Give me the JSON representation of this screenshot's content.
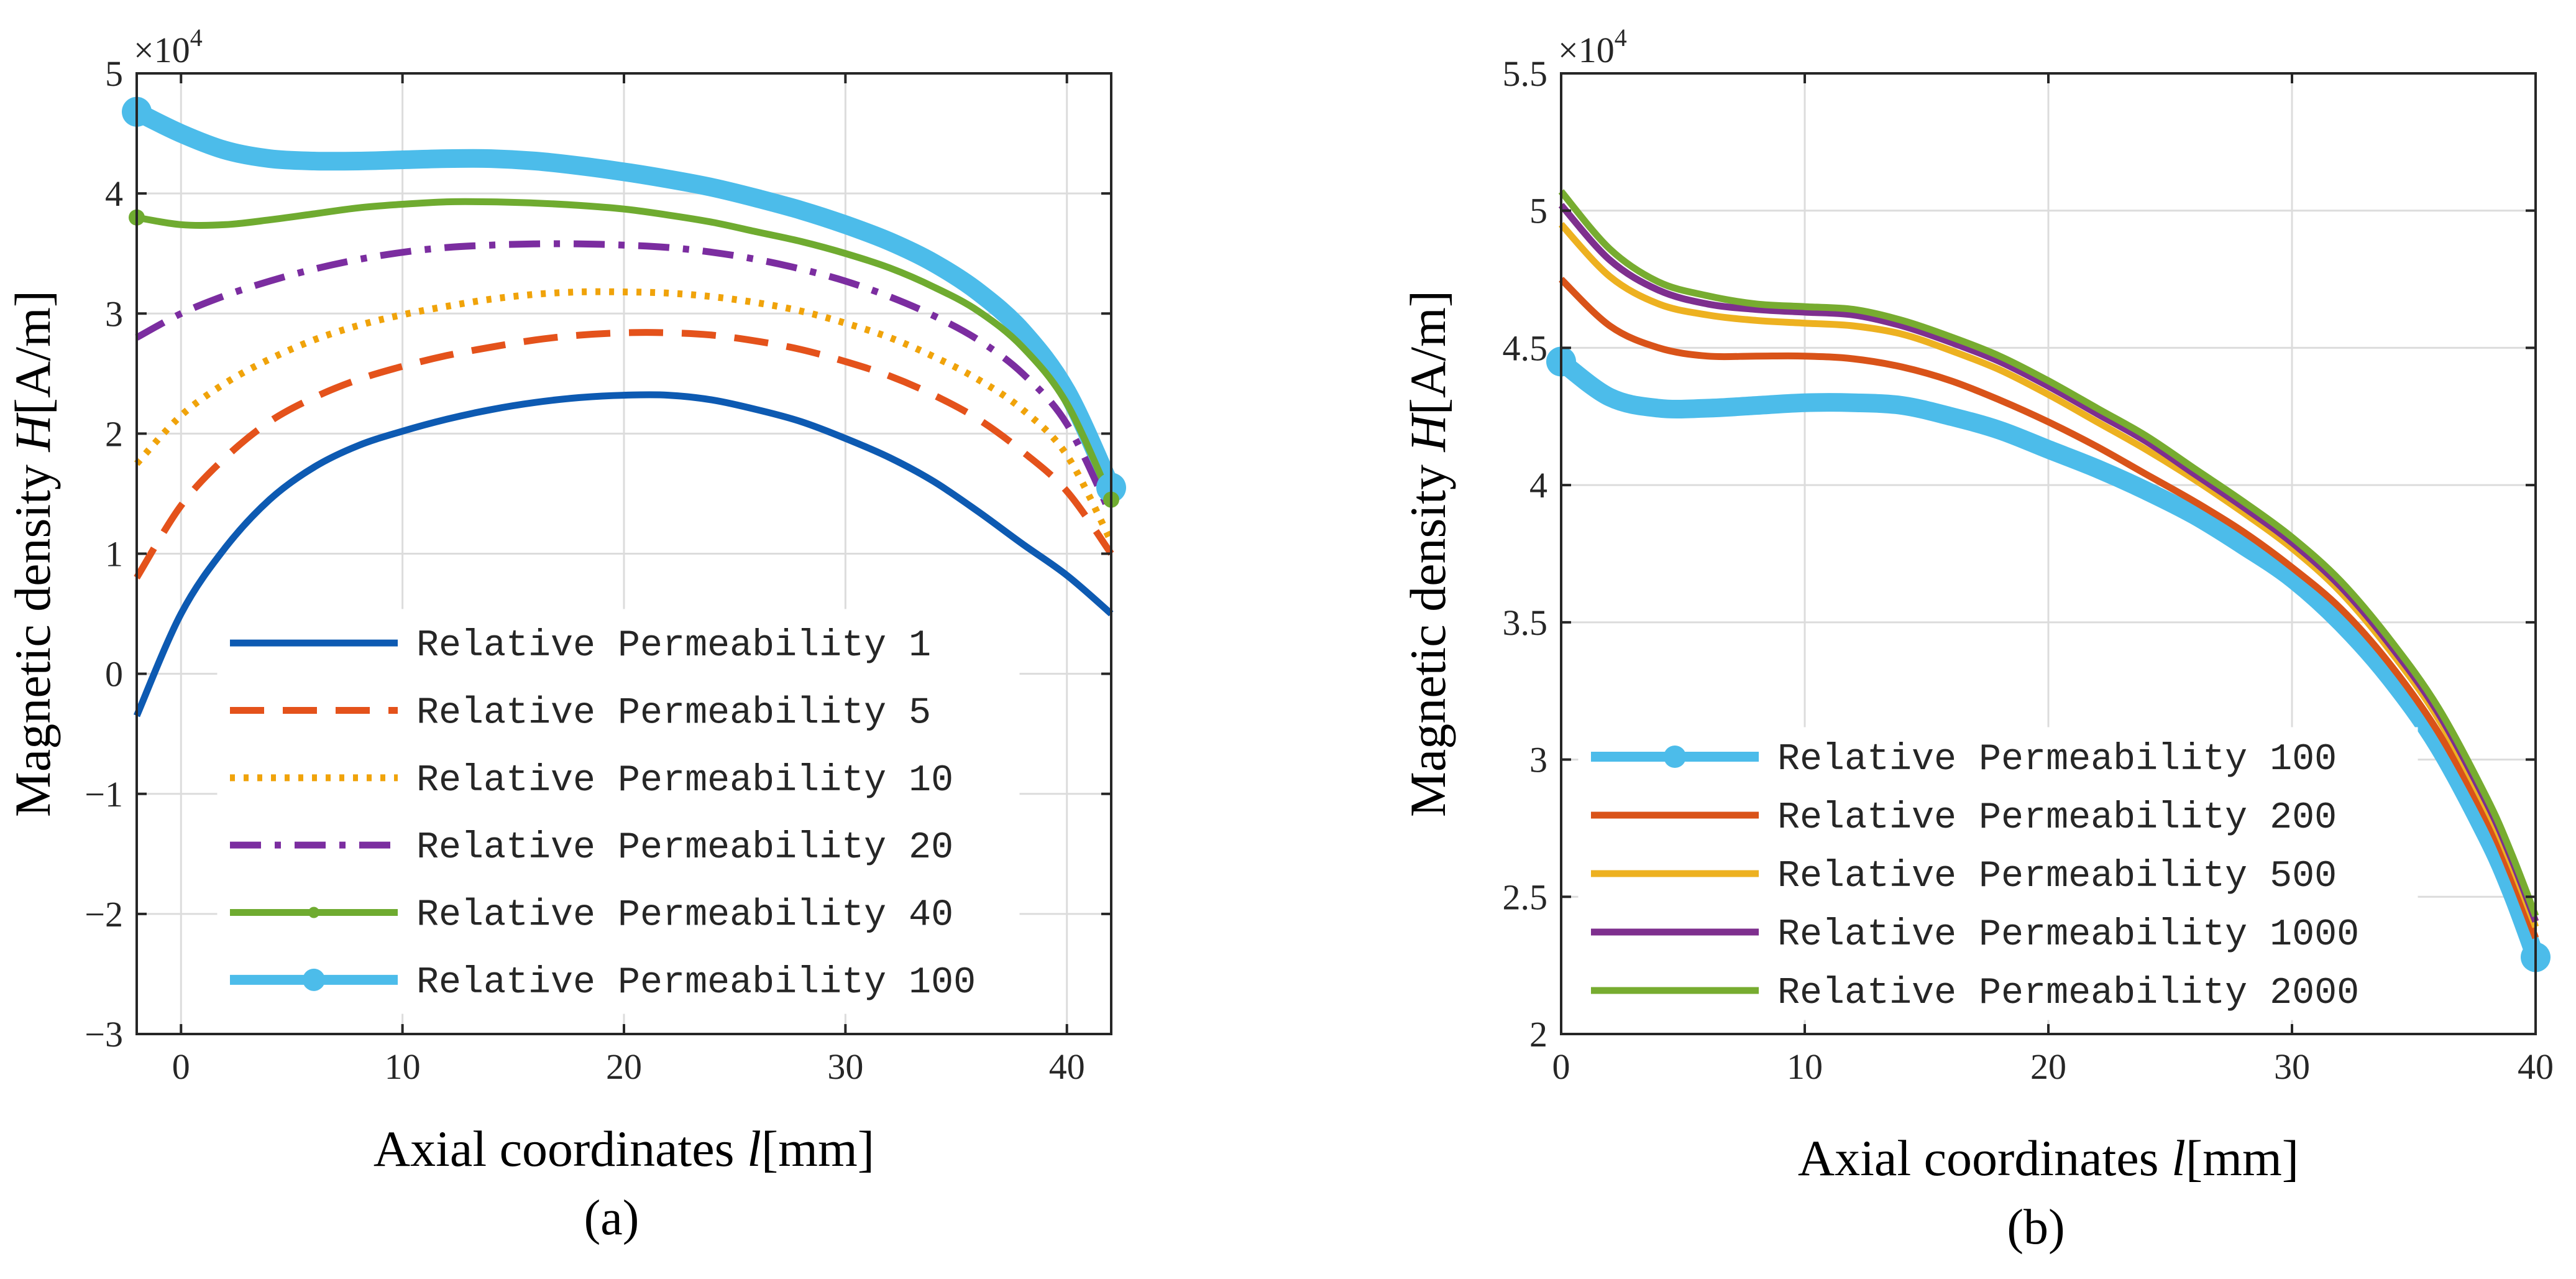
{
  "chart_data": [
    {
      "type": "line",
      "caption": "(a)",
      "xlabel": "Axial coordinates l[mm]",
      "xlabel_parts": [
        "Axial coordinates ",
        "l",
        "[mm]"
      ],
      "ylabel": "Magnetic density H[A/m]",
      "ylabel_parts": [
        "Magnetic density ",
        "H",
        "[A/m]"
      ],
      "multiplier_base": "×10",
      "multiplier_exp": "4",
      "xlim": [
        -2,
        42
      ],
      "ylim": [
        -3,
        5
      ],
      "xticks": [
        0,
        10,
        20,
        30,
        40
      ],
      "xtick_labels": [
        "0",
        "10",
        "20",
        "30",
        "40"
      ],
      "yticks": [
        -3,
        -2,
        -1,
        0,
        1,
        2,
        3,
        4,
        5
      ],
      "ytick_labels": [
        "−3",
        "−2",
        "−1",
        "0",
        "1",
        "2",
        "3",
        "4",
        "5"
      ],
      "grid": true,
      "legend_position": "lower-center",
      "series": [
        {
          "name": "Relative Permeability 1",
          "color": "#0d5ab2",
          "style": "solid",
          "x": [
            -2,
            0,
            2,
            4,
            6,
            8,
            10,
            12,
            14,
            16,
            18,
            20,
            22,
            24,
            26,
            28,
            30,
            32,
            34,
            36,
            38,
            40,
            42
          ],
          "y": [
            -0.35,
            0.5,
            1.05,
            1.45,
            1.72,
            1.9,
            2.02,
            2.12,
            2.2,
            2.26,
            2.3,
            2.32,
            2.32,
            2.28,
            2.2,
            2.1,
            1.96,
            1.8,
            1.6,
            1.35,
            1.08,
            0.82,
            0.5
          ]
        },
        {
          "name": "Relative Permeability 5",
          "color": "#e4521b",
          "style": "dash",
          "x": [
            -2,
            0,
            2,
            4,
            6,
            8,
            10,
            12,
            14,
            16,
            18,
            20,
            22,
            24,
            26,
            28,
            30,
            32,
            34,
            36,
            38,
            40,
            42
          ],
          "y": [
            0.8,
            1.4,
            1.8,
            2.1,
            2.3,
            2.45,
            2.56,
            2.65,
            2.72,
            2.78,
            2.82,
            2.84,
            2.84,
            2.82,
            2.77,
            2.7,
            2.6,
            2.48,
            2.32,
            2.12,
            1.85,
            1.52,
            1.0
          ]
        },
        {
          "name": "Relative Permeability 10",
          "color": "#f0a30a",
          "style": "dot",
          "x": [
            -2,
            0,
            2,
            4,
            6,
            8,
            10,
            12,
            14,
            16,
            18,
            20,
            22,
            24,
            26,
            28,
            30,
            32,
            34,
            36,
            38,
            40,
            42
          ],
          "y": [
            1.75,
            2.15,
            2.42,
            2.62,
            2.78,
            2.9,
            2.99,
            3.06,
            3.12,
            3.16,
            3.18,
            3.18,
            3.17,
            3.14,
            3.09,
            3.02,
            2.92,
            2.8,
            2.64,
            2.45,
            2.2,
            1.82,
            1.1
          ]
        },
        {
          "name": "Relative Permeability 20",
          "color": "#7b2da0",
          "style": "dashdot",
          "x": [
            -2,
            0,
            2,
            4,
            6,
            8,
            10,
            12,
            14,
            16,
            18,
            20,
            22,
            24,
            26,
            28,
            30,
            32,
            34,
            36,
            38,
            40,
            42
          ],
          "y": [
            2.8,
            3.0,
            3.15,
            3.27,
            3.37,
            3.45,
            3.51,
            3.55,
            3.57,
            3.58,
            3.58,
            3.57,
            3.55,
            3.51,
            3.45,
            3.37,
            3.27,
            3.14,
            2.98,
            2.78,
            2.5,
            2.08,
            1.32
          ]
        },
        {
          "name": "Relative Permeability 40",
          "color": "#6fab30",
          "style": "solid-marker",
          "x": [
            -2,
            0,
            2,
            4,
            6,
            8,
            10,
            12,
            14,
            16,
            18,
            20,
            22,
            24,
            26,
            28,
            30,
            32,
            34,
            36,
            38,
            40,
            42
          ],
          "y": [
            3.8,
            3.74,
            3.74,
            3.78,
            3.83,
            3.88,
            3.91,
            3.93,
            3.93,
            3.92,
            3.9,
            3.87,
            3.82,
            3.76,
            3.68,
            3.6,
            3.5,
            3.38,
            3.22,
            3.02,
            2.72,
            2.25,
            1.45
          ]
        },
        {
          "name": "Relative Permeability 100",
          "color": "#4cbcea",
          "style": "thick-marker",
          "x": [
            -2,
            0,
            2,
            4,
            6,
            8,
            10,
            12,
            14,
            16,
            18,
            20,
            22,
            24,
            26,
            28,
            30,
            32,
            34,
            36,
            38,
            40,
            42
          ],
          "y": [
            4.68,
            4.5,
            4.36,
            4.29,
            4.27,
            4.27,
            4.28,
            4.29,
            4.29,
            4.27,
            4.23,
            4.18,
            4.12,
            4.05,
            3.96,
            3.86,
            3.74,
            3.6,
            3.42,
            3.18,
            2.85,
            2.35,
            1.55
          ]
        }
      ]
    },
    {
      "type": "line",
      "caption": "(b)",
      "xlabel": "Axial coordinates l[mm]",
      "xlabel_parts": [
        "Axial coordinates ",
        "l",
        "[mm]"
      ],
      "ylabel": "Magnetic density H[A/m]",
      "ylabel_parts": [
        "Magnetic density ",
        "H",
        "[A/m]"
      ],
      "multiplier_base": "×10",
      "multiplier_exp": "4",
      "xlim": [
        0,
        40
      ],
      "ylim": [
        2,
        5.5
      ],
      "xticks": [
        0,
        10,
        20,
        30,
        40
      ],
      "xtick_labels": [
        "0",
        "10",
        "20",
        "30",
        "40"
      ],
      "yticks": [
        2,
        2.5,
        3,
        3.5,
        4,
        4.5,
        5,
        5.5
      ],
      "ytick_labels": [
        "2",
        "2.5",
        "3",
        "3.5",
        "4",
        "4.5",
        "5",
        "5.5"
      ],
      "grid": true,
      "legend_position": "lower-left",
      "series": [
        {
          "name": "Relative Permeability 100",
          "color": "#4cbcea",
          "style": "thick-marker",
          "x": [
            0,
            2,
            4,
            6,
            8,
            10,
            12,
            14,
            16,
            18,
            20,
            22,
            24,
            26,
            28,
            30,
            32,
            34,
            36,
            38,
            39,
            40
          ],
          "y": [
            4.45,
            4.32,
            4.28,
            4.28,
            4.29,
            4.3,
            4.3,
            4.29,
            4.25,
            4.2,
            4.13,
            4.06,
            3.98,
            3.89,
            3.78,
            3.66,
            3.5,
            3.3,
            3.05,
            2.72,
            2.52,
            2.28
          ]
        },
        {
          "name": "Relative Permeability 200",
          "color": "#d95319",
          "style": "solid",
          "x": [
            0,
            2,
            4,
            6,
            8,
            10,
            12,
            14,
            16,
            18,
            20,
            22,
            24,
            26,
            28,
            30,
            32,
            34,
            36,
            38,
            39,
            40
          ],
          "y": [
            4.75,
            4.58,
            4.5,
            4.47,
            4.47,
            4.47,
            4.46,
            4.43,
            4.38,
            4.31,
            4.23,
            4.14,
            4.04,
            3.94,
            3.83,
            3.7,
            3.55,
            3.35,
            3.1,
            2.78,
            2.58,
            2.35
          ]
        },
        {
          "name": "Relative Permeability 500",
          "color": "#edb120",
          "style": "solid",
          "x": [
            0,
            2,
            4,
            6,
            8,
            10,
            12,
            14,
            16,
            18,
            20,
            22,
            24,
            26,
            28,
            30,
            32,
            34,
            36,
            38,
            39,
            40
          ],
          "y": [
            4.95,
            4.76,
            4.66,
            4.62,
            4.6,
            4.59,
            4.58,
            4.55,
            4.49,
            4.42,
            4.33,
            4.23,
            4.13,
            4.02,
            3.9,
            3.77,
            3.61,
            3.4,
            3.15,
            2.82,
            2.62,
            2.39
          ]
        },
        {
          "name": "Relative Permeability 1000",
          "color": "#7e2f8e",
          "style": "solid",
          "x": [
            0,
            2,
            4,
            6,
            8,
            10,
            12,
            14,
            16,
            18,
            20,
            22,
            24,
            26,
            28,
            30,
            32,
            34,
            36,
            38,
            39,
            40
          ],
          "y": [
            5.02,
            4.82,
            4.71,
            4.66,
            4.64,
            4.63,
            4.62,
            4.58,
            4.52,
            4.45,
            4.36,
            4.26,
            4.16,
            4.04,
            3.92,
            3.79,
            3.63,
            3.42,
            3.17,
            2.84,
            2.64,
            2.41
          ]
        },
        {
          "name": "Relative Permeability 2000",
          "color": "#77ac30",
          "style": "solid",
          "x": [
            0,
            2,
            4,
            6,
            8,
            10,
            12,
            14,
            16,
            18,
            20,
            22,
            24,
            26,
            28,
            30,
            32,
            34,
            36,
            38,
            39,
            40
          ],
          "y": [
            5.07,
            4.86,
            4.74,
            4.69,
            4.66,
            4.65,
            4.64,
            4.6,
            4.54,
            4.47,
            4.38,
            4.28,
            4.18,
            4.06,
            3.94,
            3.81,
            3.65,
            3.44,
            3.19,
            2.86,
            2.66,
            2.43
          ]
        }
      ]
    }
  ]
}
